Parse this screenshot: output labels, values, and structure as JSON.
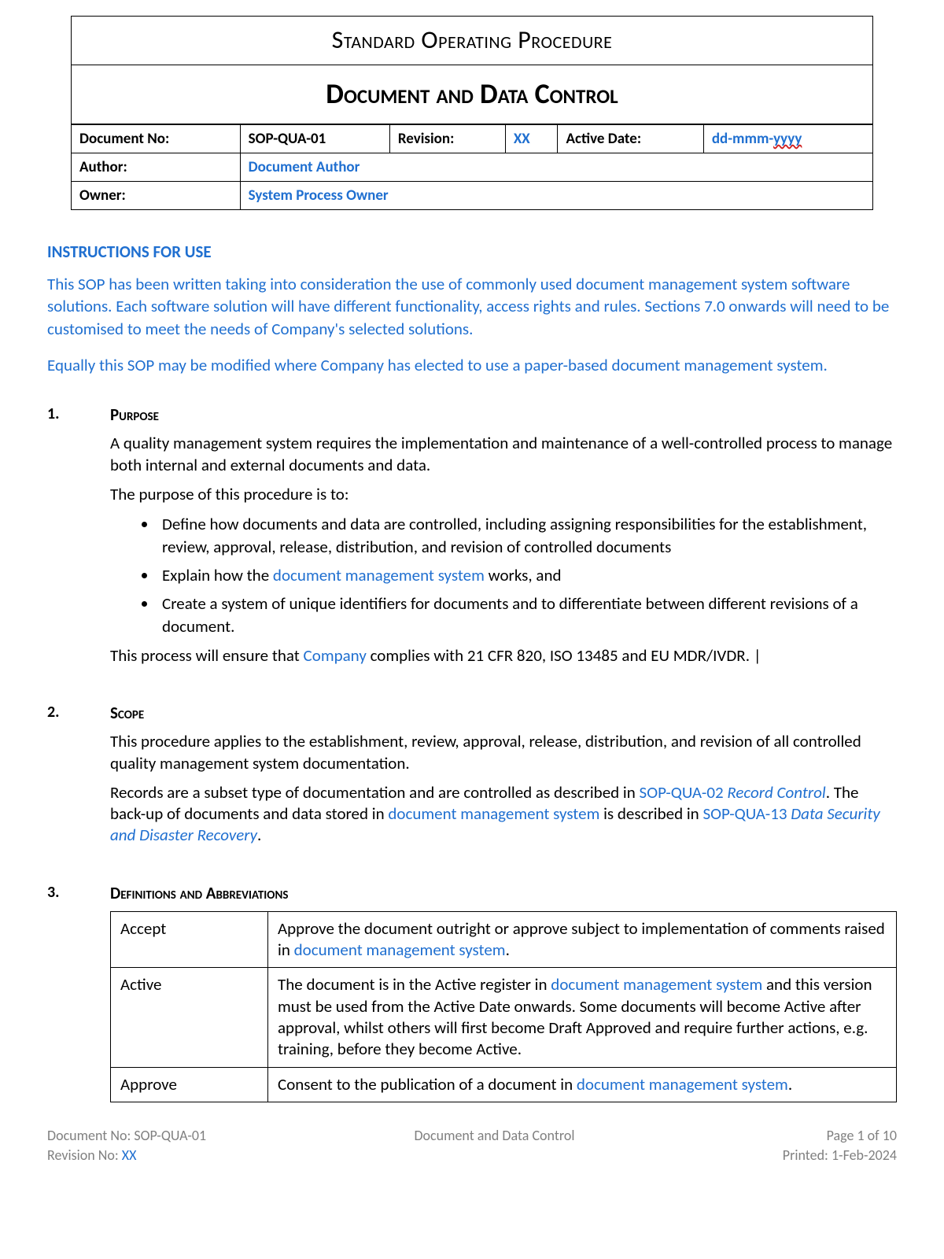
{
  "colors": {
    "text": "#000000",
    "link_blue": "#1f6fd0",
    "footer_grey": "#808080",
    "error_red": "#d02020",
    "background": "#ffffff",
    "border": "#000000"
  },
  "typography": {
    "body_font": "Calibri",
    "body_size_pt": 16,
    "title1_size_pt": 24,
    "title2_size_pt": 27
  },
  "header": {
    "title_line1": "Standard Operating Procedure",
    "title_line2": "Document and Data Control",
    "meta": {
      "doc_no_label": "Document No:",
      "doc_no_value": "SOP-QUA-01",
      "revision_label": "Revision:",
      "revision_value": "XX",
      "active_date_label": "Active Date:",
      "active_date_value_prefix": "dd-mmm-",
      "active_date_value_wavy": "yyyy",
      "author_label": "Author:",
      "author_value": "Document Author",
      "owner_label": "Owner:",
      "owner_value": "System Process Owner"
    }
  },
  "instructions": {
    "heading": "INSTRUCTIONS FOR USE",
    "p1": "This SOP has been written taking into consideration the use of commonly used document management system software solutions. Each software solution will have different functionality, access rights and rules. Sections 7.0 onwards will need to be customised to meet the needs of Company's selected solutions.",
    "p2": "Equally this SOP may be modified where Company has elected to use a paper-based document management system."
  },
  "sections": {
    "purpose": {
      "num": "1.",
      "heading": "Purpose",
      "p1": "A quality management system requires the implementation and maintenance of a well-controlled process to manage both internal and external documents and data.",
      "p2": "The purpose of this procedure is to:",
      "bullets": {
        "b1": "Define how documents and data are controlled, including assigning responsibilities for the establishment, review, approval, release, distribution, and revision of controlled documents",
        "b2_pre": "Explain how the ",
        "b2_link": "document management system",
        "b2_post": " works, and",
        "b3": "Create a system of unique identifiers for documents and to differentiate between different revisions of a document."
      },
      "p3_pre": "This process will ensure that ",
      "p3_link": "Company",
      "p3_post": " complies with 21 CFR 820, ISO 13485 and EU MDR/IVDR."
    },
    "scope": {
      "num": "2.",
      "heading": "Scope",
      "p1": "This procedure applies to the establishment, review, approval, release, distribution, and revision of all controlled quality management system documentation.",
      "p2_pre": "Records are a subset type of documentation and are controlled as described in ",
      "p2_link1": "SOP-QUA-02 ",
      "p2_link1_italic": "Record Control",
      "p2_mid": ". The back-up of documents and data stored in ",
      "p2_link2": "document management system",
      "p2_post": " is described in ",
      "p2_link3": "SOP-QUA-13 ",
      "p2_link3_italic": "Data Security and Disaster Recovery",
      "p2_end": "."
    },
    "defs": {
      "num": "3.",
      "heading": "Definitions and Abbreviations",
      "rows": [
        {
          "term": "Accept",
          "def_pre": "Approve the document outright or approve subject to implementation of comments raised in ",
          "def_link": "document management system",
          "def_post": "."
        },
        {
          "term": "Active",
          "def_pre": "The document is in the Active register in ",
          "def_link": "document management system",
          "def_post": " and this version must be used from the Active Date onwards. Some documents will become Active after approval, whilst others will first become Draft Approved and require further actions, e.g. training, before they become Active."
        },
        {
          "term": "Approve",
          "def_pre": "Consent to the publication of a document in ",
          "def_link": "document management system",
          "def_post": "."
        }
      ]
    }
  },
  "footer": {
    "doc_no_label": "Document No: ",
    "doc_no_value": "SOP-QUA-01",
    "rev_label": "Revision No: ",
    "rev_value": "XX",
    "center": "Document and Data Control",
    "page": "Page 1 of 10",
    "printed_label": "Printed:  ",
    "printed_value": "1-Feb-2024"
  }
}
